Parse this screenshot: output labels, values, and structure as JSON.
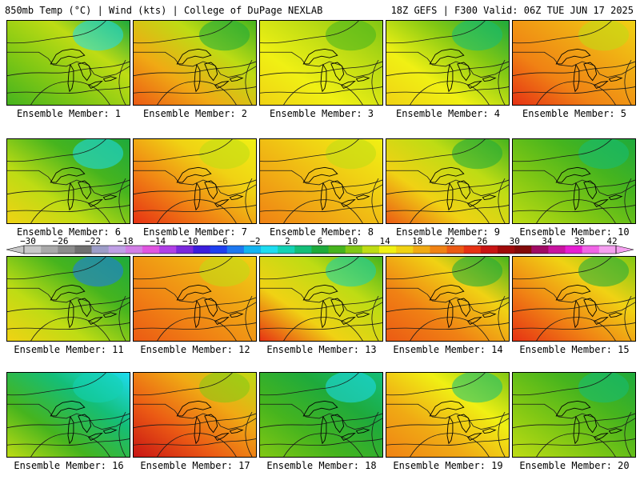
{
  "header": {
    "left_title": "850mb Temp (°C) | Wind (kts) | College of DuPage NEXLAB",
    "right_title": "18Z GEFS | F300 Valid: 06Z TUE JUN 17 2025"
  },
  "colorbar": {
    "labels": [
      "−30",
      "−26",
      "−22",
      "−18",
      "−14",
      "−10",
      "−6",
      "−2",
      "2",
      "6",
      "10",
      "14",
      "18",
      "22",
      "26",
      "30",
      "34",
      "38",
      "42"
    ],
    "colors": [
      "#c8c8c8",
      "#a9a9a9",
      "#8c8c8c",
      "#707070",
      "#9d9dc8",
      "#c0a0e6",
      "#d27fe6",
      "#e055e0",
      "#b040e6",
      "#7a28dc",
      "#3c1edc",
      "#1e40f0",
      "#1e78f0",
      "#14b4f0",
      "#1edcf0",
      "#14d2b4",
      "#14be78",
      "#1eaa3c",
      "#46b41e",
      "#82c814",
      "#bedc14",
      "#f0f014",
      "#f0d214",
      "#f0aa14",
      "#f08214",
      "#eb5a14",
      "#e63214",
      "#c81414",
      "#a00a0a",
      "#820a0a",
      "#a00a64",
      "#c814a0",
      "#e61ed2",
      "#f064e6",
      "#f5a0f0"
    ]
  },
  "members": [
    {
      "label": "Ensemble Member: 1",
      "stops": [
        "#46b41e",
        "#82c814",
        "#bedc14",
        "#1eaa3c"
      ],
      "accent": "#1edcf0"
    },
    {
      "label": "Ensemble Member: 2",
      "stops": [
        "#eb5a14",
        "#f0aa14",
        "#bedc14",
        "#46b41e"
      ],
      "accent": "#1eaa3c"
    },
    {
      "label": "Ensemble Member: 3",
      "stops": [
        "#f0d214",
        "#f0f014",
        "#bedc14",
        "#82c814"
      ],
      "accent": "#46b41e"
    },
    {
      "label": "Ensemble Member: 4",
      "stops": [
        "#f0d214",
        "#f0f014",
        "#82c814",
        "#1eaa3c"
      ],
      "accent": "#14be78"
    },
    {
      "label": "Ensemble Member: 5",
      "stops": [
        "#e63214",
        "#f08214",
        "#f0aa14",
        "#f0d214"
      ],
      "accent": "#bedc14"
    },
    {
      "label": "Ensemble Member: 6",
      "stops": [
        "#f0d214",
        "#bedc14",
        "#46b41e",
        "#1eaa3c"
      ],
      "accent": "#1edcf0"
    },
    {
      "label": "Ensemble Member: 7",
      "stops": [
        "#e63214",
        "#f08214",
        "#f0d214",
        "#f0f014"
      ],
      "accent": "#bedc14"
    },
    {
      "label": "Ensemble Member: 8",
      "stops": [
        "#f08214",
        "#f0aa14",
        "#f0d214",
        "#f0f014"
      ],
      "accent": "#bedc14"
    },
    {
      "label": "Ensemble Member: 9",
      "stops": [
        "#eb5a14",
        "#f0d214",
        "#bedc14",
        "#46b41e"
      ],
      "accent": "#1eaa3c"
    },
    {
      "label": "Ensemble Member: 10",
      "stops": [
        "#bedc14",
        "#82c814",
        "#46b41e",
        "#1eaa3c"
      ],
      "accent": "#14be78"
    },
    {
      "label": "Ensemble Member: 11",
      "stops": [
        "#f0d214",
        "#bedc14",
        "#46b41e",
        "#1eaa3c"
      ],
      "accent": "#1e78f0"
    },
    {
      "label": "Ensemble Member: 12",
      "stops": [
        "#eb5a14",
        "#f08214",
        "#f0aa14",
        "#f0d214"
      ],
      "accent": "#bedc14"
    },
    {
      "label": "Ensemble Member: 13",
      "stops": [
        "#e63214",
        "#f0d214",
        "#bedc14",
        "#46b41e"
      ],
      "accent": "#14d2b4"
    },
    {
      "label": "Ensemble Member: 14",
      "stops": [
        "#eb5a14",
        "#f08214",
        "#f0d214",
        "#46b41e"
      ],
      "accent": "#1eaa3c"
    },
    {
      "label": "Ensemble Member: 15",
      "stops": [
        "#e63214",
        "#f08214",
        "#f0d214",
        "#82c814"
      ],
      "accent": "#1eaa3c"
    },
    {
      "label": "Ensemble Member: 16",
      "stops": [
        "#bedc14",
        "#46b41e",
        "#14be78",
        "#1edcf0"
      ],
      "accent": "#14d2b4"
    },
    {
      "label": "Ensemble Member: 17",
      "stops": [
        "#c81414",
        "#eb5a14",
        "#f0aa14",
        "#bedc14"
      ],
      "accent": "#82c814"
    },
    {
      "label": "Ensemble Member: 18",
      "stops": [
        "#82c814",
        "#46b41e",
        "#1eaa3c",
        "#14be78"
      ],
      "accent": "#1edcf0"
    },
    {
      "label": "Ensemble Member: 19",
      "stops": [
        "#f08214",
        "#f0aa14",
        "#f0f014",
        "#82c814"
      ],
      "accent": "#14be78"
    },
    {
      "label": "Ensemble Member: 20",
      "stops": [
        "#bedc14",
        "#82c814",
        "#46b41e",
        "#1eaa3c"
      ],
      "accent": "#14be78"
    }
  ]
}
